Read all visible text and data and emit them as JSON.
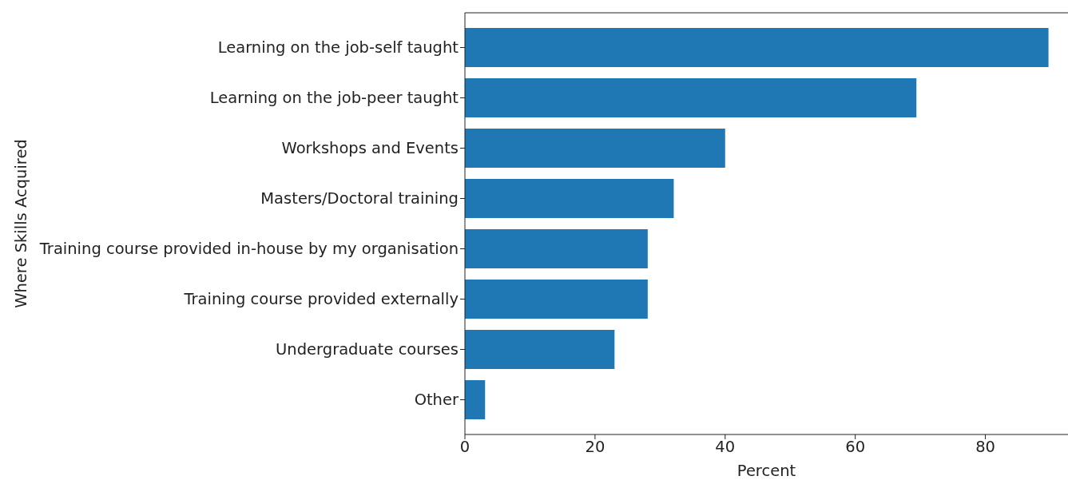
{
  "chart_data": {
    "type": "bar",
    "orientation": "horizontal",
    "xlabel": "Percent",
    "ylabel": "Where Skills Acquired",
    "categories": [
      "Learning on the job-self taught",
      "Learning on the job-peer taught",
      "Workshops and Events",
      "Masters/Doctoral training",
      "Training course provided in-house by my organisation",
      "Training course provided externally",
      "Undergraduate courses",
      "Other"
    ],
    "values": [
      89.7,
      69.4,
      40.0,
      32.1,
      28.1,
      28.1,
      23.0,
      3.1
    ],
    "color": "#1f77b4",
    "xlim": [
      0,
      92.7
    ],
    "xticks": [
      0,
      20,
      40,
      60,
      80
    ],
    "grid": false
  }
}
